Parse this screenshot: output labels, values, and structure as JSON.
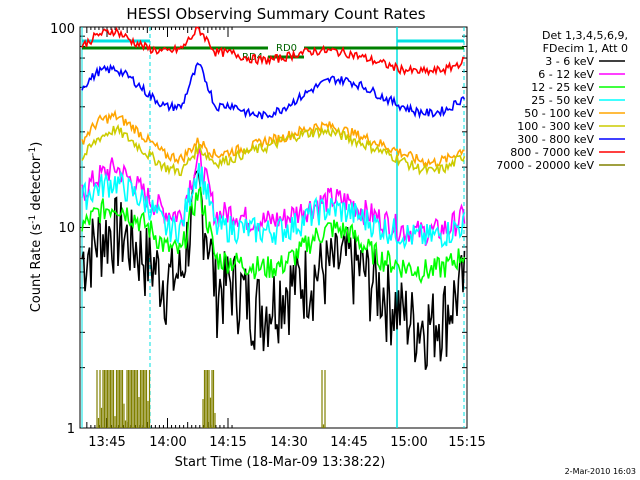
{
  "chart_data": {
    "type": "line",
    "title": "HESSI Observing Summary Count Rates",
    "xlabel": "Start Time (18-Mar-09 13:38:22)",
    "ylabel_parts": [
      "Count Rate (s",
      "-1",
      " detector",
      "-1",
      ")"
    ],
    "yscale": "log",
    "ylim": [
      1,
      100
    ],
    "xlim_minutes": [
      38.4,
      77.0
    ],
    "x_tick_labels": [
      "13:45",
      "14:00",
      "14:15",
      "14:30",
      "14:45",
      "15:00",
      "15:15"
    ],
    "y_tick_labels": [
      "1",
      "10",
      "100"
    ],
    "legend": {
      "header": [
        "Det 1,3,4,5,6,9,",
        "FDecim 1, Att 0"
      ],
      "placement": "right"
    },
    "series": [
      {
        "name": "3 - 6 keV",
        "color": "#000000",
        "values": [
          7,
          9,
          10,
          8.5,
          7,
          5.5,
          6,
          15,
          5,
          5.5,
          4.5,
          4,
          5,
          5.5,
          6,
          6.5,
          7,
          6,
          5,
          4,
          3.4,
          3.4,
          4,
          5.5
        ]
      },
      {
        "name": "6 - 12 keV",
        "color": "#ff00ff",
        "values": [
          15,
          18,
          20,
          17,
          14,
          12,
          11.5,
          22,
          11.5,
          12,
          11,
          10.8,
          11,
          12,
          13,
          14,
          13.5,
          12,
          11,
          10,
          9.5,
          9.5,
          10,
          11.5
        ]
      },
      {
        "name": "12 - 25 keV",
        "color": "#00ff00",
        "values": [
          10,
          12,
          13,
          11.5,
          10,
          8,
          7.5,
          15,
          7,
          6.8,
          6.5,
          6.3,
          6.5,
          7.5,
          9,
          10,
          9.5,
          8,
          7,
          6.5,
          6.2,
          6.1,
          6.5,
          7.5
        ]
      },
      {
        "name": "25 - 50 keV",
        "color": "#00ffff",
        "values": [
          14,
          16,
          17,
          15,
          13,
          10,
          10,
          20,
          10,
          10,
          9.8,
          9.6,
          9.8,
          10.5,
          12,
          12.5,
          12,
          11,
          10,
          9.5,
          9,
          9,
          9.5,
          10.5
        ]
      },
      {
        "name": "50 - 100 keV",
        "color": "#ffa500",
        "values": [
          27,
          34,
          36,
          32,
          27,
          23,
          22,
          27,
          23,
          24,
          25,
          27,
          28,
          30,
          32,
          32,
          30,
          28,
          26,
          24,
          22,
          21,
          22,
          25
        ]
      },
      {
        "name": "100 - 300 keV",
        "color": "#cccc00",
        "values": [
          22,
          28,
          31,
          27,
          23,
          20,
          19,
          25,
          21,
          22,
          24,
          25,
          27,
          29,
          30,
          30,
          28,
          26,
          24,
          22,
          20,
          19,
          20,
          23
        ]
      },
      {
        "name": "300 - 800 keV",
        "color": "#0000ff",
        "values": [
          50,
          60,
          62,
          55,
          46,
          40,
          40,
          65,
          40,
          41,
          37,
          36,
          39,
          44,
          50,
          55,
          54,
          50,
          45,
          41,
          38,
          37,
          39,
          45
        ]
      },
      {
        "name": "800 - 7000 keV",
        "color": "#ff0000",
        "values": [
          80,
          92,
          96,
          85,
          78,
          75,
          78,
          98,
          75,
          74,
          70,
          68,
          70,
          74,
          76,
          76,
          74,
          70,
          66,
          62,
          60,
          60,
          62,
          68
        ]
      },
      {
        "name": "7000 - 20000 keV",
        "color": "#808000",
        "values": []
      }
    ],
    "annotations": [
      "RD4",
      "RD0"
    ]
  },
  "footer": {
    "timestamp": "2-Mar-2010 16:03"
  }
}
